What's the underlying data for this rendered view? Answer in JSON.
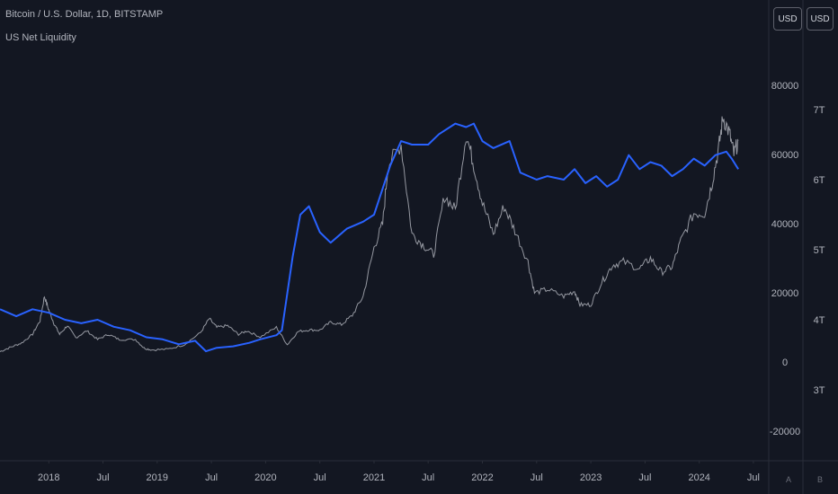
{
  "legend": {
    "symbol_line": "Bitcoin / U.S. Dollar, 1D, BITSTAMP",
    "indicator_line": "US Net Liquidity"
  },
  "currency_badges": [
    "USD",
    "USD"
  ],
  "corner_buttons": [
    "A",
    "B"
  ],
  "colors": {
    "background": "#131722",
    "btc_series": "#9598a1",
    "liquidity_series": "#2962ff",
    "axis_text": "#b2b5be",
    "axis_line": "#2a2e39"
  },
  "chart_data": {
    "type": "line",
    "x_ticks": [
      {
        "label": "2018",
        "t": 2018.0
      },
      {
        "label": "Jul",
        "t": 2018.5
      },
      {
        "label": "2019",
        "t": 2019.0
      },
      {
        "label": "Jul",
        "t": 2019.5
      },
      {
        "label": "2020",
        "t": 2020.0
      },
      {
        "label": "Jul",
        "t": 2020.5
      },
      {
        "label": "2021",
        "t": 2021.0
      },
      {
        "label": "Jul",
        "t": 2021.5
      },
      {
        "label": "2022",
        "t": 2022.0
      },
      {
        "label": "Jul",
        "t": 2022.5
      },
      {
        "label": "2023",
        "t": 2023.0
      },
      {
        "label": "Jul",
        "t": 2023.5
      },
      {
        "label": "2024",
        "t": 2024.0
      },
      {
        "label": "Jul",
        "t": 2024.5
      }
    ],
    "x_range": [
      2017.55,
      2024.6
    ],
    "y_left_axis": {
      "range": [
        -20000,
        80000
      ],
      "ticks": [
        80000,
        60000,
        40000,
        20000,
        0,
        -20000
      ],
      "tick_labels": [
        "80000",
        "60000",
        "40000",
        "20000",
        "0",
        "-20000"
      ]
    },
    "y_right_axis": {
      "unit": "T",
      "range": [
        3.0,
        7.0
      ],
      "ticks": [
        7,
        6,
        5,
        4,
        3
      ],
      "tick_labels": [
        "7T",
        "6T",
        "5T",
        "4T",
        "3T"
      ]
    },
    "series": [
      {
        "name": "Bitcoin / U.S. Dollar",
        "axis": "left",
        "points": [
          [
            2017.55,
            3000
          ],
          [
            2017.65,
            4300
          ],
          [
            2017.75,
            5500
          ],
          [
            2017.85,
            8000
          ],
          [
            2017.92,
            12000
          ],
          [
            2017.96,
            19000
          ],
          [
            2018.0,
            15000
          ],
          [
            2018.05,
            11000
          ],
          [
            2018.1,
            8000
          ],
          [
            2018.17,
            10500
          ],
          [
            2018.25,
            7000
          ],
          [
            2018.35,
            9000
          ],
          [
            2018.45,
            6500
          ],
          [
            2018.55,
            8000
          ],
          [
            2018.65,
            6500
          ],
          [
            2018.8,
            6500
          ],
          [
            2018.88,
            4000
          ],
          [
            2018.95,
            3500
          ],
          [
            2019.1,
            3700
          ],
          [
            2019.25,
            5000
          ],
          [
            2019.4,
            8500
          ],
          [
            2019.48,
            12500
          ],
          [
            2019.55,
            10000
          ],
          [
            2019.65,
            10500
          ],
          [
            2019.75,
            8000
          ],
          [
            2019.83,
            9000
          ],
          [
            2019.95,
            7200
          ],
          [
            2020.1,
            10000
          ],
          [
            2020.2,
            5000
          ],
          [
            2020.3,
            8800
          ],
          [
            2020.4,
            9300
          ],
          [
            2020.5,
            9200
          ],
          [
            2020.6,
            11500
          ],
          [
            2020.7,
            10800
          ],
          [
            2020.8,
            13500
          ],
          [
            2020.9,
            19000
          ],
          [
            2021.0,
            33000
          ],
          [
            2021.08,
            40000
          ],
          [
            2021.13,
            57000
          ],
          [
            2021.25,
            63000
          ],
          [
            2021.35,
            37000
          ],
          [
            2021.45,
            34000
          ],
          [
            2021.55,
            31000
          ],
          [
            2021.65,
            48000
          ],
          [
            2021.75,
            44000
          ],
          [
            2021.85,
            66000
          ],
          [
            2021.92,
            57000
          ],
          [
            2022.0,
            46000
          ],
          [
            2022.1,
            37000
          ],
          [
            2022.2,
            45000
          ],
          [
            2022.3,
            38000
          ],
          [
            2022.42,
            29000
          ],
          [
            2022.48,
            20000
          ],
          [
            2022.6,
            21000
          ],
          [
            2022.75,
            19000
          ],
          [
            2022.85,
            20500
          ],
          [
            2022.9,
            16500
          ],
          [
            2023.0,
            16600
          ],
          [
            2023.1,
            23000
          ],
          [
            2023.2,
            28000
          ],
          [
            2023.3,
            29000
          ],
          [
            2023.45,
            27000
          ],
          [
            2023.55,
            30000
          ],
          [
            2023.65,
            26000
          ],
          [
            2023.75,
            27500
          ],
          [
            2023.83,
            35000
          ],
          [
            2023.95,
            43000
          ],
          [
            2024.05,
            43000
          ],
          [
            2024.12,
            52000
          ],
          [
            2024.18,
            62000
          ],
          [
            2024.22,
            71000
          ],
          [
            2024.28,
            66000
          ],
          [
            2024.32,
            60000
          ],
          [
            2024.36,
            64000
          ]
        ]
      },
      {
        "name": "US Net Liquidity",
        "axis": "right",
        "points": [
          [
            2017.55,
            4.15
          ],
          [
            2017.7,
            4.05
          ],
          [
            2017.85,
            4.15
          ],
          [
            2018.0,
            4.1
          ],
          [
            2018.15,
            4.0
          ],
          [
            2018.3,
            3.95
          ],
          [
            2018.45,
            4.0
          ],
          [
            2018.6,
            3.9
          ],
          [
            2018.75,
            3.85
          ],
          [
            2018.9,
            3.75
          ],
          [
            2019.05,
            3.72
          ],
          [
            2019.2,
            3.65
          ],
          [
            2019.35,
            3.7
          ],
          [
            2019.45,
            3.55
          ],
          [
            2019.55,
            3.6
          ],
          [
            2019.7,
            3.62
          ],
          [
            2019.85,
            3.67
          ],
          [
            2019.95,
            3.72
          ],
          [
            2020.1,
            3.78
          ],
          [
            2020.15,
            3.85
          ],
          [
            2020.25,
            4.9
          ],
          [
            2020.32,
            5.5
          ],
          [
            2020.4,
            5.62
          ],
          [
            2020.5,
            5.25
          ],
          [
            2020.6,
            5.1
          ],
          [
            2020.75,
            5.3
          ],
          [
            2020.9,
            5.4
          ],
          [
            2021.0,
            5.5
          ],
          [
            2021.15,
            6.2
          ],
          [
            2021.25,
            6.55
          ],
          [
            2021.35,
            6.5
          ],
          [
            2021.5,
            6.5
          ],
          [
            2021.6,
            6.65
          ],
          [
            2021.75,
            6.8
          ],
          [
            2021.85,
            6.75
          ],
          [
            2021.92,
            6.8
          ],
          [
            2022.0,
            6.55
          ],
          [
            2022.1,
            6.45
          ],
          [
            2022.25,
            6.55
          ],
          [
            2022.35,
            6.1
          ],
          [
            2022.5,
            6.0
          ],
          [
            2022.6,
            6.05
          ],
          [
            2022.75,
            6.0
          ],
          [
            2022.85,
            6.15
          ],
          [
            2022.95,
            5.95
          ],
          [
            2023.05,
            6.05
          ],
          [
            2023.15,
            5.9
          ],
          [
            2023.25,
            6.0
          ],
          [
            2023.35,
            6.35
          ],
          [
            2023.45,
            6.15
          ],
          [
            2023.55,
            6.25
          ],
          [
            2023.65,
            6.2
          ],
          [
            2023.75,
            6.05
          ],
          [
            2023.85,
            6.15
          ],
          [
            2023.95,
            6.3
          ],
          [
            2024.05,
            6.2
          ],
          [
            2024.15,
            6.35
          ],
          [
            2024.25,
            6.4
          ],
          [
            2024.3,
            6.3
          ],
          [
            2024.36,
            6.15
          ]
        ]
      }
    ]
  }
}
